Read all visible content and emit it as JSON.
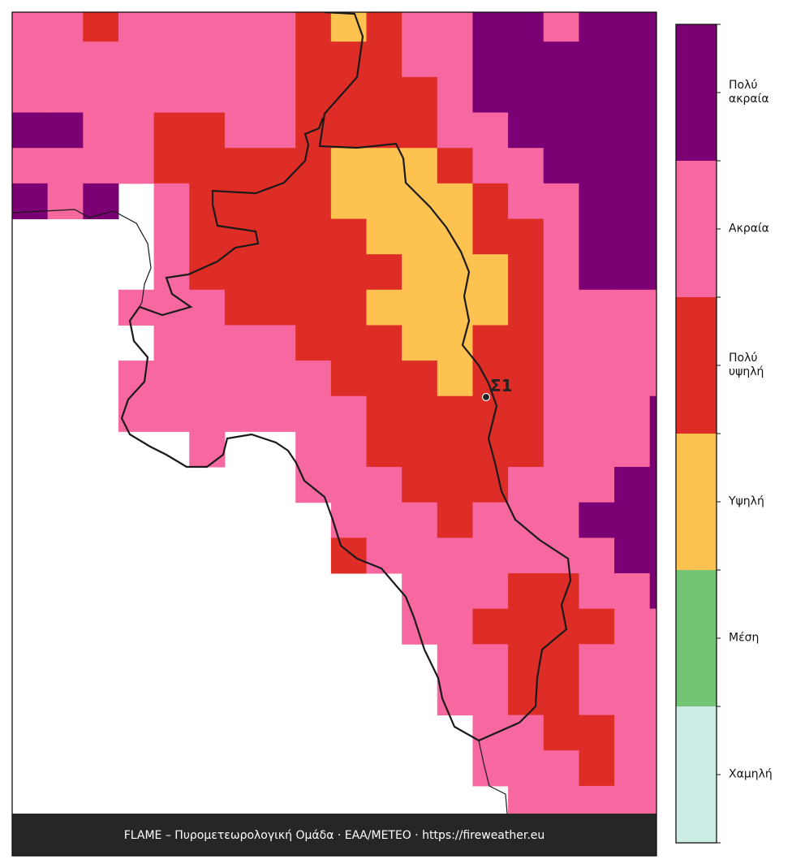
{
  "map": {
    "marker_label": "Σ1",
    "footer": "FLAME – Πυρομετεωρολογική Ομάδα · ΕΑΑ/METEO · https://fireweather.eu",
    "levels": [
      {
        "label": "Χαμηλή",
        "color": "#ccece6"
      },
      {
        "label": "Μέση",
        "color": "#74c476"
      },
      {
        "label": "Υψηλή",
        "color": "#fec250"
      },
      {
        "label": "Πολύ υψηλή",
        "color": "#de2d26"
      },
      {
        "label": "Ακραία",
        "color": "#f768a1"
      },
      {
        "label": "Πολύ ακραία",
        "color": "#7b0073"
      }
    ],
    "grid": [
      [
        4,
        4,
        3,
        4,
        4,
        4,
        4,
        4,
        3,
        2,
        3,
        4,
        4,
        5,
        5,
        4,
        5,
        5,
        5
      ],
      [
        4,
        4,
        4,
        4,
        4,
        4,
        4,
        4,
        3,
        3,
        3,
        4,
        4,
        5,
        5,
        5,
        5,
        5,
        5
      ],
      [
        4,
        4,
        4,
        4,
        4,
        4,
        4,
        4,
        3,
        3,
        3,
        3,
        4,
        5,
        5,
        5,
        5,
        5,
        5
      ],
      [
        5,
        5,
        4,
        4,
        3,
        3,
        4,
        4,
        3,
        3,
        3,
        3,
        4,
        4,
        5,
        5,
        5,
        5,
        5
      ],
      [
        4,
        4,
        4,
        4,
        3,
        3,
        3,
        3,
        3,
        2,
        2,
        2,
        3,
        4,
        4,
        5,
        5,
        5,
        5
      ],
      [
        5,
        4,
        5,
        null,
        4,
        3,
        3,
        3,
        3,
        2,
        2,
        2,
        2,
        3,
        4,
        4,
        5,
        5,
        5
      ],
      [
        null,
        null,
        null,
        null,
        4,
        3,
        3,
        3,
        3,
        3,
        2,
        2,
        2,
        3,
        3,
        4,
        5,
        5,
        5
      ],
      [
        null,
        null,
        null,
        null,
        4,
        3,
        3,
        3,
        3,
        3,
        3,
        2,
        2,
        2,
        3,
        4,
        5,
        5,
        5
      ],
      [
        null,
        null,
        null,
        4,
        4,
        4,
        3,
        3,
        3,
        3,
        2,
        2,
        2,
        2,
        3,
        4,
        4,
        4,
        4
      ],
      [
        null,
        null,
        null,
        null,
        4,
        4,
        4,
        4,
        3,
        3,
        3,
        2,
        2,
        3,
        3,
        4,
        4,
        4,
        4
      ],
      [
        null,
        null,
        null,
        4,
        4,
        4,
        4,
        4,
        4,
        3,
        3,
        3,
        2,
        3,
        3,
        4,
        4,
        4,
        4
      ],
      [
        null,
        null,
        null,
        4,
        4,
        4,
        4,
        4,
        4,
        4,
        3,
        3,
        3,
        3,
        3,
        4,
        4,
        4,
        5
      ],
      [
        null,
        null,
        null,
        null,
        null,
        4,
        null,
        null,
        4,
        4,
        3,
        3,
        3,
        3,
        3,
        4,
        4,
        4,
        5
      ],
      [
        null,
        null,
        null,
        null,
        null,
        null,
        null,
        null,
        4,
        4,
        4,
        3,
        3,
        3,
        4,
        4,
        4,
        5,
        5
      ],
      [
        null,
        null,
        null,
        null,
        null,
        null,
        null,
        null,
        null,
        4,
        4,
        4,
        3,
        4,
        4,
        4,
        5,
        5,
        5
      ],
      [
        null,
        null,
        null,
        null,
        null,
        null,
        null,
        null,
        null,
        3,
        4,
        4,
        4,
        4,
        4,
        4,
        4,
        5,
        5
      ],
      [
        null,
        null,
        null,
        null,
        null,
        null,
        null,
        null,
        null,
        null,
        null,
        4,
        4,
        4,
        3,
        3,
        4,
        4,
        5
      ],
      [
        null,
        null,
        null,
        null,
        null,
        null,
        null,
        null,
        null,
        null,
        null,
        4,
        4,
        3,
        3,
        3,
        3,
        4,
        4
      ],
      [
        null,
        null,
        null,
        null,
        null,
        null,
        null,
        null,
        null,
        null,
        null,
        null,
        4,
        4,
        3,
        3,
        4,
        4,
        4
      ],
      [
        null,
        null,
        null,
        null,
        null,
        null,
        null,
        null,
        null,
        null,
        null,
        null,
        4,
        4,
        3,
        3,
        4,
        4,
        4
      ],
      [
        null,
        null,
        null,
        null,
        null,
        null,
        null,
        null,
        null,
        null,
        null,
        null,
        null,
        4,
        4,
        3,
        3,
        4,
        4
      ],
      [
        null,
        null,
        null,
        null,
        null,
        null,
        null,
        null,
        null,
        null,
        null,
        null,
        null,
        4,
        4,
        4,
        3,
        4,
        4
      ],
      [
        null,
        null,
        null,
        null,
        null,
        null,
        null,
        null,
        null,
        null,
        null,
        null,
        null,
        null,
        4,
        4,
        4,
        4,
        4
      ]
    ]
  }
}
